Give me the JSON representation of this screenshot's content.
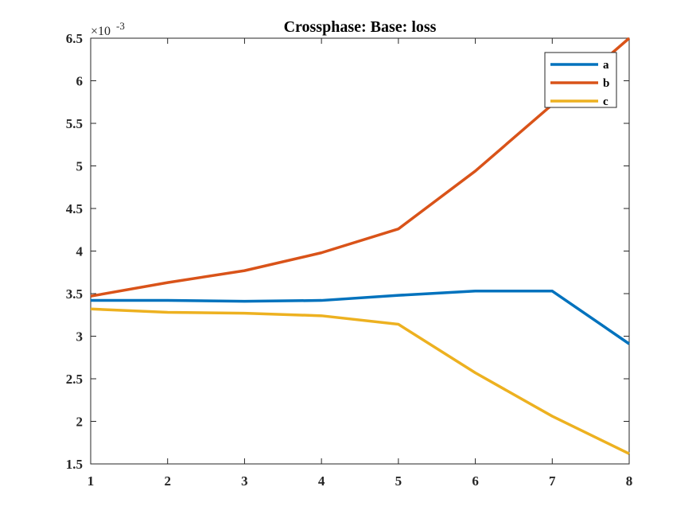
{
  "chart_data": {
    "type": "line",
    "title": "Crossphase: Base: loss",
    "xlabel": "",
    "ylabel": "",
    "x": [
      1,
      2,
      3,
      4,
      5,
      6,
      7,
      8
    ],
    "xlim": [
      1,
      8
    ],
    "ylim": [
      0.0015,
      0.0065
    ],
    "x_ticks": [
      "1",
      "2",
      "3",
      "4",
      "5",
      "6",
      "7",
      "8"
    ],
    "y_ticks": [
      "1.5",
      "2",
      "2.5",
      "3",
      "3.5",
      "4",
      "4.5",
      "5",
      "5.5",
      "6",
      "6.5"
    ],
    "y_exponent_base": "×10",
    "y_exponent_power": "-3",
    "grid": false,
    "legend_position": "top-right",
    "series": [
      {
        "name": "a",
        "color": "#0072BD",
        "values": [
          0.00342,
          0.00342,
          0.00341,
          0.00342,
          0.00348,
          0.00353,
          0.00353,
          0.00291
        ]
      },
      {
        "name": "b",
        "color": "#D95319",
        "values": [
          0.00347,
          0.00363,
          0.00377,
          0.00398,
          0.00426,
          0.00494,
          0.00572,
          0.0065
        ]
      },
      {
        "name": "c",
        "color": "#EDB120",
        "values": [
          0.00332,
          0.00328,
          0.00327,
          0.00324,
          0.00314,
          0.00257,
          0.00206,
          0.00162
        ]
      }
    ]
  }
}
